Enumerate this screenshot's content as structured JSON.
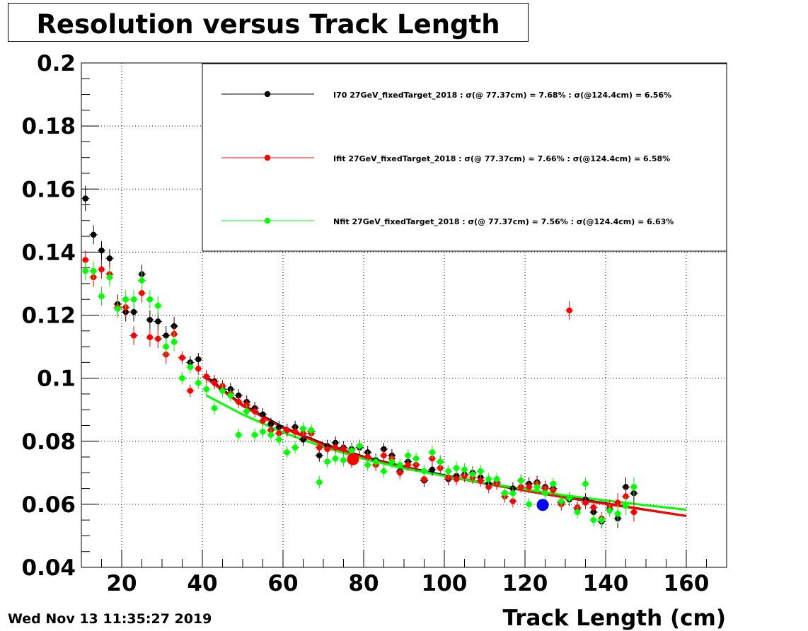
{
  "title": "Resolution versus Track Length",
  "timestamp": "Wed Nov 13 11:35:27 2019",
  "chart_data": {
    "type": "scatter",
    "title": "Resolution versus Track Length",
    "xlabel": "Track Length (cm)",
    "ylabel": "",
    "xlim": [
      10,
      170
    ],
    "ylim": [
      0.04,
      0.2
    ],
    "xticks": [
      20,
      40,
      60,
      80,
      100,
      120,
      140,
      160
    ],
    "xtick_labels": [
      "20",
      "40",
      "60",
      "80",
      "100",
      "120",
      "140",
      "160"
    ],
    "yticks": [
      0.04,
      0.06,
      0.08,
      0.1,
      0.12,
      0.14,
      0.16,
      0.18,
      0.2
    ],
    "ytick_labels": [
      "0.04",
      "0.06",
      "0.08",
      "0.1",
      "0.12",
      "0.14",
      "0.16",
      "0.18",
      "0.2"
    ],
    "grid": true,
    "legend_position": "top-right",
    "series": [
      {
        "name": "I70  27GeV_fixedTarget_2018 : σ(@ 77.37cm) =  7.68% : σ(@124.4cm) =  6.56%",
        "color": "#000000",
        "fit": {
          "x": [
            41,
            50,
            60,
            70,
            80,
            90,
            100,
            110,
            120,
            130,
            140,
            150,
            160
          ],
          "y": [
            0.1005,
            0.0915,
            0.0845,
            0.0792,
            0.0751,
            0.0719,
            0.0692,
            0.0668,
            0.0645,
            0.0623,
            0.0603,
            0.0583,
            0.0563
          ]
        },
        "points": [
          [
            11,
            0.157,
            0.004
          ],
          [
            13,
            0.1455,
            0.003
          ],
          [
            15,
            0.1405,
            0.003
          ],
          [
            17,
            0.138,
            0.003
          ],
          [
            19,
            0.1235,
            0.003
          ],
          [
            21,
            0.121,
            0.003
          ],
          [
            23,
            0.121,
            0.003
          ],
          [
            25,
            0.133,
            0.003
          ],
          [
            27,
            0.1185,
            0.003
          ],
          [
            29,
            0.118,
            0.003
          ],
          [
            31,
            0.1135,
            0.003
          ],
          [
            33,
            0.1165,
            0.003
          ],
          [
            35,
            0.1065,
            0.002
          ],
          [
            37,
            0.105,
            0.002
          ],
          [
            39,
            0.106,
            0.002
          ],
          [
            41,
            0.1005,
            0.002
          ],
          [
            43,
            0.099,
            0.002
          ],
          [
            45,
            0.0965,
            0.002
          ],
          [
            47,
            0.0965,
            0.002
          ],
          [
            49,
            0.0945,
            0.002
          ],
          [
            51,
            0.0925,
            0.002
          ],
          [
            53,
            0.0905,
            0.002
          ],
          [
            55,
            0.0885,
            0.002
          ],
          [
            57,
            0.0855,
            0.002
          ],
          [
            59,
            0.0845,
            0.002
          ],
          [
            61,
            0.0835,
            0.002
          ],
          [
            63,
            0.0845,
            0.002
          ],
          [
            65,
            0.0805,
            0.002
          ],
          [
            67,
            0.083,
            0.002
          ],
          [
            69,
            0.0755,
            0.002
          ],
          [
            71,
            0.0785,
            0.002
          ],
          [
            73,
            0.0795,
            0.002
          ],
          [
            75,
            0.078,
            0.002
          ],
          [
            77,
            0.0775,
            0.002
          ],
          [
            79,
            0.078,
            0.002
          ],
          [
            81,
            0.0765,
            0.002
          ],
          [
            83,
            0.074,
            0.002
          ],
          [
            85,
            0.0775,
            0.002
          ],
          [
            87,
            0.0755,
            0.002
          ],
          [
            89,
            0.0705,
            0.002
          ],
          [
            91,
            0.0735,
            0.002
          ],
          [
            93,
            0.0725,
            0.002
          ],
          [
            95,
            0.0675,
            0.002
          ],
          [
            97,
            0.071,
            0.002
          ],
          [
            99,
            0.0735,
            0.002
          ],
          [
            101,
            0.068,
            0.002
          ],
          [
            103,
            0.069,
            0.002
          ],
          [
            105,
            0.0695,
            0.002
          ],
          [
            107,
            0.07,
            0.002
          ],
          [
            109,
            0.0685,
            0.002
          ],
          [
            111,
            0.0665,
            0.002
          ],
          [
            113,
            0.067,
            0.002
          ],
          [
            115,
            0.0635,
            0.002
          ],
          [
            117,
            0.065,
            0.002
          ],
          [
            119,
            0.0675,
            0.002
          ],
          [
            121,
            0.0665,
            0.002
          ],
          [
            123,
            0.067,
            0.002
          ],
          [
            125,
            0.0655,
            0.002
          ],
          [
            127,
            0.065,
            0.002
          ],
          [
            129,
            0.0605,
            0.002
          ],
          [
            131,
            0.0615,
            0.002
          ],
          [
            133,
            0.0585,
            0.002
          ],
          [
            135,
            0.0615,
            0.002
          ],
          [
            137,
            0.0575,
            0.002
          ],
          [
            139,
            0.0545,
            0.002
          ],
          [
            141,
            0.0585,
            0.002
          ],
          [
            143,
            0.0555,
            0.003
          ],
          [
            145,
            0.0655,
            0.003
          ],
          [
            147,
            0.0635,
            0.003
          ]
        ]
      },
      {
        "name": "Ifit 27GeV_fixedTarget_2018 : σ(@ 77.37cm) =  7.66% : σ(@124.4cm) =  6.58%",
        "color": "#ff0000",
        "fit": {
          "x": [
            41,
            50,
            60,
            70,
            80,
            90,
            100,
            110,
            120,
            130,
            140,
            150,
            160
          ],
          "y": [
            0.1,
            0.0912,
            0.0842,
            0.0789,
            0.0749,
            0.0717,
            0.069,
            0.0666,
            0.0643,
            0.0621,
            0.0601,
            0.0582,
            0.0563
          ]
        },
        "points": [
          [
            11,
            0.1375,
            0.003
          ],
          [
            13,
            0.132,
            0.003
          ],
          [
            15,
            0.1345,
            0.003
          ],
          [
            17,
            0.133,
            0.003
          ],
          [
            19,
            0.1225,
            0.003
          ],
          [
            21,
            0.1225,
            0.003
          ],
          [
            23,
            0.1135,
            0.003
          ],
          [
            25,
            0.127,
            0.003
          ],
          [
            27,
            0.113,
            0.003
          ],
          [
            29,
            0.1125,
            0.003
          ],
          [
            31,
            0.1075,
            0.003
          ],
          [
            33,
            0.114,
            0.003
          ],
          [
            35,
            0.1065,
            0.002
          ],
          [
            37,
            0.096,
            0.002
          ],
          [
            39,
            0.103,
            0.002
          ],
          [
            41,
            0.1005,
            0.002
          ],
          [
            43,
            0.0985,
            0.002
          ],
          [
            45,
            0.0975,
            0.002
          ],
          [
            47,
            0.095,
            0.002
          ],
          [
            49,
            0.0925,
            0.002
          ],
          [
            51,
            0.0915,
            0.002
          ],
          [
            53,
            0.0895,
            0.002
          ],
          [
            55,
            0.0865,
            0.002
          ],
          [
            57,
            0.0835,
            0.002
          ],
          [
            59,
            0.0825,
            0.002
          ],
          [
            61,
            0.0835,
            0.002
          ],
          [
            63,
            0.083,
            0.002
          ],
          [
            65,
            0.0825,
            0.002
          ],
          [
            67,
            0.0825,
            0.002
          ],
          [
            69,
            0.078,
            0.002
          ],
          [
            71,
            0.0775,
            0.002
          ],
          [
            73,
            0.078,
            0.002
          ],
          [
            75,
            0.0775,
            0.002
          ],
          [
            77,
            0.0735,
            0.002
          ],
          [
            79,
            0.0785,
            0.002
          ],
          [
            81,
            0.075,
            0.002
          ],
          [
            83,
            0.0725,
            0.002
          ],
          [
            85,
            0.0755,
            0.002
          ],
          [
            87,
            0.0745,
            0.002
          ],
          [
            89,
            0.07,
            0.002
          ],
          [
            91,
            0.0725,
            0.002
          ],
          [
            93,
            0.0725,
            0.002
          ],
          [
            95,
            0.068,
            0.002
          ],
          [
            97,
            0.0745,
            0.002
          ],
          [
            99,
            0.0715,
            0.002
          ],
          [
            101,
            0.0685,
            0.002
          ],
          [
            103,
            0.068,
            0.002
          ],
          [
            105,
            0.069,
            0.002
          ],
          [
            107,
            0.0685,
            0.002
          ],
          [
            109,
            0.0675,
            0.002
          ],
          [
            111,
            0.0655,
            0.002
          ],
          [
            113,
            0.0665,
            0.002
          ],
          [
            115,
            0.0625,
            0.002
          ],
          [
            117,
            0.061,
            0.002
          ],
          [
            119,
            0.0655,
            0.002
          ],
          [
            121,
            0.0655,
            0.002
          ],
          [
            123,
            0.0665,
            0.002
          ],
          [
            125,
            0.065,
            0.002
          ],
          [
            127,
            0.0645,
            0.002
          ],
          [
            129,
            0.06,
            0.002
          ],
          [
            131,
            0.1215,
            0.003
          ],
          [
            133,
            0.059,
            0.002
          ],
          [
            135,
            0.0605,
            0.002
          ],
          [
            137,
            0.059,
            0.002
          ],
          [
            139,
            0.0555,
            0.002
          ],
          [
            141,
            0.0595,
            0.002
          ],
          [
            143,
            0.0605,
            0.003
          ],
          [
            145,
            0.0625,
            0.003
          ],
          [
            147,
            0.0575,
            0.003
          ]
        ]
      },
      {
        "name": "Nfit 27GeV_fixedTarget_2018 : σ(@ 77.37cm) =  7.56% : σ(@124.4cm) =  6.63%",
        "color": "#00ff00",
        "fit": {
          "x": [
            41,
            50,
            60,
            70,
            80,
            90,
            100,
            110,
            120,
            130,
            140,
            150,
            160
          ],
          "y": [
            0.0945,
            0.0885,
            0.0828,
            0.0782,
            0.0744,
            0.0714,
            0.069,
            0.0668,
            0.0648,
            0.0628,
            0.0612,
            0.0597,
            0.0583
          ]
        },
        "points": [
          [
            11,
            0.134,
            0.003
          ],
          [
            13,
            0.134,
            0.003
          ],
          [
            15,
            0.126,
            0.003
          ],
          [
            17,
            0.132,
            0.003
          ],
          [
            19,
            0.122,
            0.003
          ],
          [
            21,
            0.125,
            0.003
          ],
          [
            23,
            0.125,
            0.003
          ],
          [
            25,
            0.131,
            0.003
          ],
          [
            27,
            0.125,
            0.003
          ],
          [
            29,
            0.123,
            0.003
          ],
          [
            31,
            0.11,
            0.003
          ],
          [
            33,
            0.1115,
            0.003
          ],
          [
            35,
            0.1,
            0.002
          ],
          [
            37,
            0.1035,
            0.002
          ],
          [
            39,
            0.0985,
            0.002
          ],
          [
            41,
            0.0965,
            0.002
          ],
          [
            43,
            0.0905,
            0.002
          ],
          [
            45,
            0.096,
            0.002
          ],
          [
            47,
            0.0945,
            0.002
          ],
          [
            49,
            0.082,
            0.002
          ],
          [
            51,
            0.0895,
            0.002
          ],
          [
            53,
            0.082,
            0.002
          ],
          [
            55,
            0.083,
            0.002
          ],
          [
            57,
            0.082,
            0.002
          ],
          [
            59,
            0.0805,
            0.002
          ],
          [
            61,
            0.0765,
            0.002
          ],
          [
            63,
            0.078,
            0.002
          ],
          [
            65,
            0.084,
            0.002
          ],
          [
            67,
            0.0835,
            0.002
          ],
          [
            69,
            0.067,
            0.002
          ],
          [
            71,
            0.0735,
            0.002
          ],
          [
            73,
            0.0745,
            0.002
          ],
          [
            75,
            0.074,
            0.002
          ],
          [
            77,
            0.077,
            0.002
          ],
          [
            79,
            0.0785,
            0.002
          ],
          [
            81,
            0.0725,
            0.002
          ],
          [
            83,
            0.0735,
            0.002
          ],
          [
            85,
            0.0705,
            0.002
          ],
          [
            87,
            0.0735,
            0.002
          ],
          [
            89,
            0.0725,
            0.002
          ],
          [
            91,
            0.0755,
            0.002
          ],
          [
            93,
            0.0745,
            0.002
          ],
          [
            95,
            0.0705,
            0.002
          ],
          [
            97,
            0.0765,
            0.002
          ],
          [
            99,
            0.0735,
            0.002
          ],
          [
            101,
            0.0705,
            0.002
          ],
          [
            103,
            0.0715,
            0.002
          ],
          [
            105,
            0.071,
            0.002
          ],
          [
            107,
            0.0695,
            0.002
          ],
          [
            109,
            0.0705,
            0.002
          ],
          [
            111,
            0.068,
            0.002
          ],
          [
            113,
            0.068,
            0.002
          ],
          [
            115,
            0.0635,
            0.002
          ],
          [
            117,
            0.0635,
            0.002
          ],
          [
            119,
            0.0675,
            0.002
          ],
          [
            121,
            0.06,
            0.002
          ],
          [
            123,
            0.0655,
            0.002
          ],
          [
            125,
            0.0635,
            0.002
          ],
          [
            127,
            0.0665,
            0.002
          ],
          [
            129,
            0.061,
            0.002
          ],
          [
            131,
            0.062,
            0.002
          ],
          [
            133,
            0.0575,
            0.002
          ],
          [
            135,
            0.0665,
            0.002
          ],
          [
            137,
            0.055,
            0.002
          ],
          [
            139,
            0.055,
            0.002
          ],
          [
            141,
            0.058,
            0.002
          ],
          [
            143,
            0.057,
            0.003
          ],
          [
            145,
            0.0595,
            0.003
          ],
          [
            147,
            0.0655,
            0.003
          ]
        ]
      }
    ],
    "markers": [
      {
        "x": 77.37,
        "y": 0.0743,
        "color": "#ff0000"
      },
      {
        "x": 124.4,
        "y": 0.0598,
        "color": "#0000ff"
      }
    ]
  }
}
